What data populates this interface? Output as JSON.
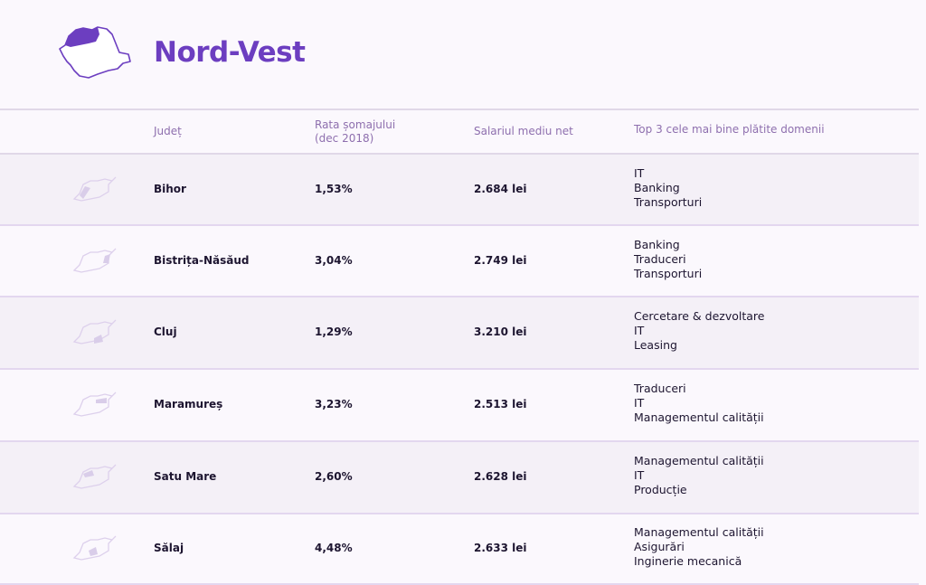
{
  "header": {
    "title": "Nord-Vest"
  },
  "table": {
    "columns": [
      "Județ",
      "Rata șomajului\n(dec 2018)",
      "Salariul mediu net",
      "Top 3 cele mai bine plătite domenii"
    ],
    "rows": [
      {
        "county": "Bihor",
        "rate": "1,53%",
        "salary": "2.684 lei",
        "domains": [
          "IT",
          "Banking",
          "Transporturi"
        ]
      },
      {
        "county": "Bistrița-Năsăud",
        "rate": "3,04%",
        "salary": "2.749 lei",
        "domains": [
          "Banking",
          "Traduceri",
          "Transporturi"
        ]
      },
      {
        "county": "Cluj",
        "rate": "1,29%",
        "salary": "3.210 lei",
        "domains": [
          "Cercetare & dezvoltare",
          "IT",
          "Leasing"
        ]
      },
      {
        "county": "Maramureș",
        "rate": "3,23%",
        "salary": "2.513 lei",
        "domains": [
          "Traduceri",
          "IT",
          "Managementul calității"
        ]
      },
      {
        "county": "Satu Mare",
        "rate": "2,60%",
        "salary": "2.628 lei",
        "domains": [
          "Managementul calității",
          "IT",
          "Producție"
        ]
      },
      {
        "county": "Sălaj",
        "rate": "4,48%",
        "salary": "2.633 lei",
        "domains": [
          "Managementul calității",
          "Asigurări",
          "Inginerie mecanică"
        ]
      }
    ]
  },
  "colors": {
    "accent": "#6c3ec0",
    "mapLight": "#d9cde9"
  }
}
